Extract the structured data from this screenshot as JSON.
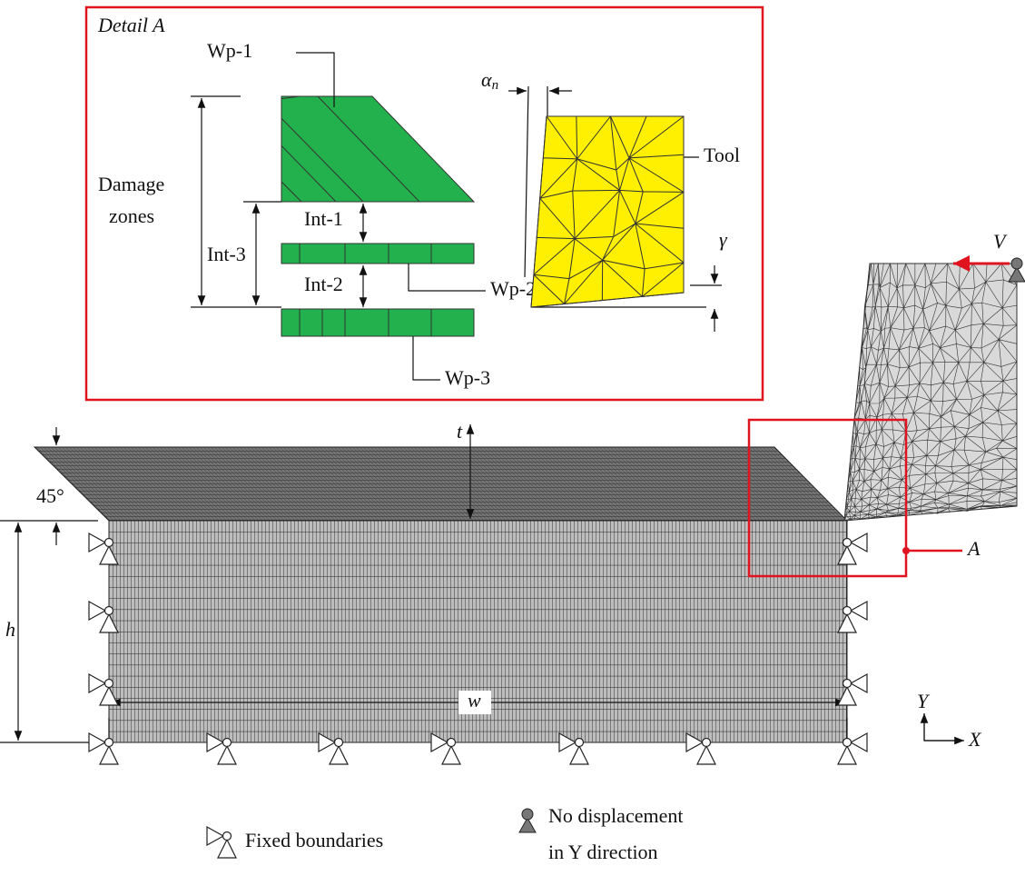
{
  "detail_label": "Detail A",
  "labels": {
    "wp1": "Wp-1",
    "damage_zones": [
      "Damage",
      "zones"
    ],
    "int1": "Int-1",
    "int2": "Int-2",
    "int3": "Int-3",
    "wp2": "Wp-2",
    "wp3": "Wp-3",
    "alpha_n": {
      "symbol": "α",
      "subscript": "n"
    },
    "tool": "Tool",
    "gamma": "γ",
    "velocity": "V",
    "thickness": "t",
    "angle": "45°",
    "height": "h",
    "detail_ref": "A",
    "axis_y": "Y",
    "axis_x": "X",
    "width": "w"
  },
  "legend": {
    "fixed": "Fixed boundaries",
    "no_disp": [
      "No displacement",
      "in Y direction"
    ]
  }
}
